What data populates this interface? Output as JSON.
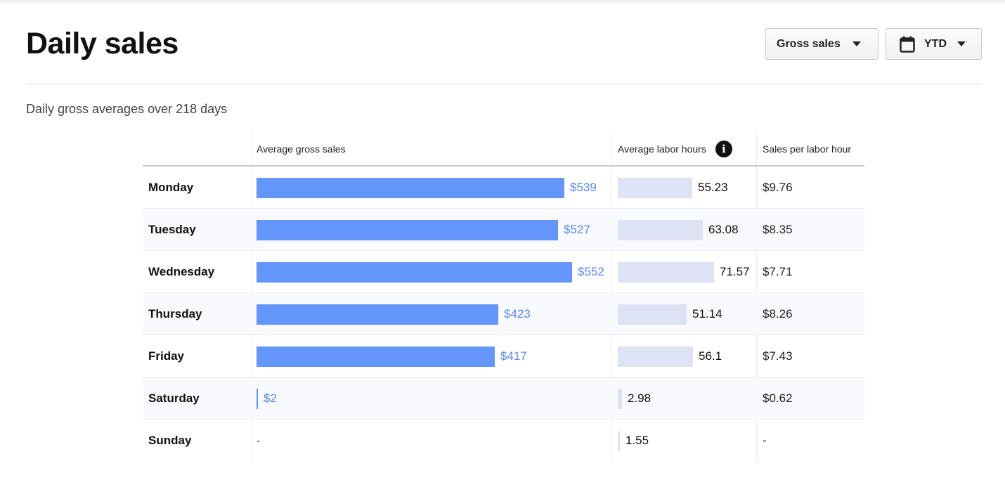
{
  "page": {
    "title": "Daily sales",
    "subtitle": "Daily gross averages over 218 days"
  },
  "controls": {
    "metric_label": "Gross sales",
    "range_label": "YTD"
  },
  "table": {
    "headers": {
      "sales": "Average gross sales",
      "labor": "Average labor hours",
      "sph": "Sales per labor hour"
    },
    "rows": [
      {
        "day": "Monday",
        "sales": 539,
        "sales_label": "$539",
        "labor": 55.23,
        "labor_label": "55.23",
        "sph": "$9.76"
      },
      {
        "day": "Tuesday",
        "sales": 527,
        "sales_label": "$527",
        "labor": 63.08,
        "labor_label": "63.08",
        "sph": "$8.35"
      },
      {
        "day": "Wednesday",
        "sales": 552,
        "sales_label": "$552",
        "labor": 71.57,
        "labor_label": "71.57",
        "sph": "$7.71"
      },
      {
        "day": "Thursday",
        "sales": 423,
        "sales_label": "$423",
        "labor": 51.14,
        "labor_label": "51.14",
        "sph": "$8.26"
      },
      {
        "day": "Friday",
        "sales": 417,
        "sales_label": "$417",
        "labor": 56.1,
        "labor_label": "56.1",
        "sph": "$7.43"
      },
      {
        "day": "Saturday",
        "sales": 2,
        "sales_label": "$2",
        "labor": 2.98,
        "labor_label": "2.98",
        "sph": "$0.62"
      },
      {
        "day": "Sunday",
        "sales": null,
        "sales_label": "-",
        "labor": 1.55,
        "labor_label": "1.55",
        "sph": "-"
      }
    ]
  },
  "colors": {
    "sales_bar": "#6495f9",
    "sales_text": "#5b88ec",
    "labor_bar": "#dde3f4",
    "alt_row": "#f8fafe"
  },
  "icons": {
    "info": "info-icon",
    "calendar": "calendar-icon",
    "caret": "caret-down-icon"
  }
}
